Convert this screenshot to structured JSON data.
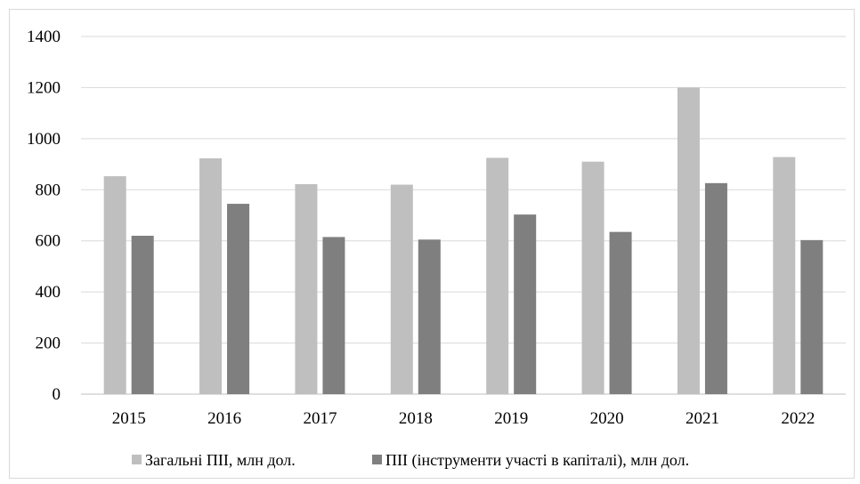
{
  "chart_data": {
    "type": "bar",
    "categories": [
      "2015",
      "2016",
      "2017",
      "2018",
      "2019",
      "2020",
      "2021",
      "2022"
    ],
    "series": [
      {
        "name": "Загальні ПІІ, млн дол.",
        "color": "#bfbfbf",
        "values": [
          853,
          923,
          822,
          820,
          925,
          910,
          1200,
          928
        ]
      },
      {
        "name": "ПІІ (інструменти участі в капіталі), млн дол.",
        "color": "#7f7f7f",
        "values": [
          620,
          745,
          615,
          605,
          703,
          635,
          826,
          603
        ]
      }
    ],
    "ylim": [
      0,
      1400
    ],
    "yticks": [
      "0",
      "200",
      "400",
      "600",
      "800",
      "1000",
      "1200",
      "1400"
    ],
    "grid": true,
    "legend": "bottom",
    "title": "",
    "xlabel": "",
    "ylabel": "",
    "gridline_color": "#d9d9d9"
  }
}
